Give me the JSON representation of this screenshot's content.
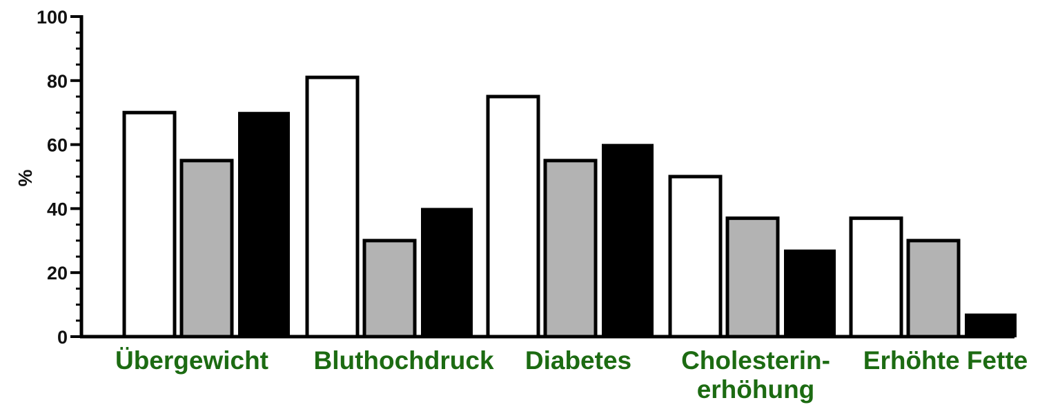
{
  "chart_data": {
    "type": "bar",
    "ylabel": "%",
    "ylim": [
      0,
      100
    ],
    "yticks": [
      0,
      20,
      40,
      60,
      80,
      100
    ],
    "categories": [
      "Übergewicht",
      "Bluthochdruck",
      "Diabetes",
      "Cholesterin-\nerhöhung",
      "Erhöhte Fette"
    ],
    "series": [
      {
        "values": [
          70,
          81,
          75,
          50,
          37
        ],
        "color": "#ffffff"
      },
      {
        "values": [
          55,
          30,
          55,
          37,
          30
        ],
        "color": "#b3b3b3"
      },
      {
        "values": [
          70,
          40,
          60,
          27,
          7
        ],
        "color": "#000000"
      }
    ],
    "category_label_color": "#1c6b12",
    "grid": false,
    "legend": "none"
  }
}
